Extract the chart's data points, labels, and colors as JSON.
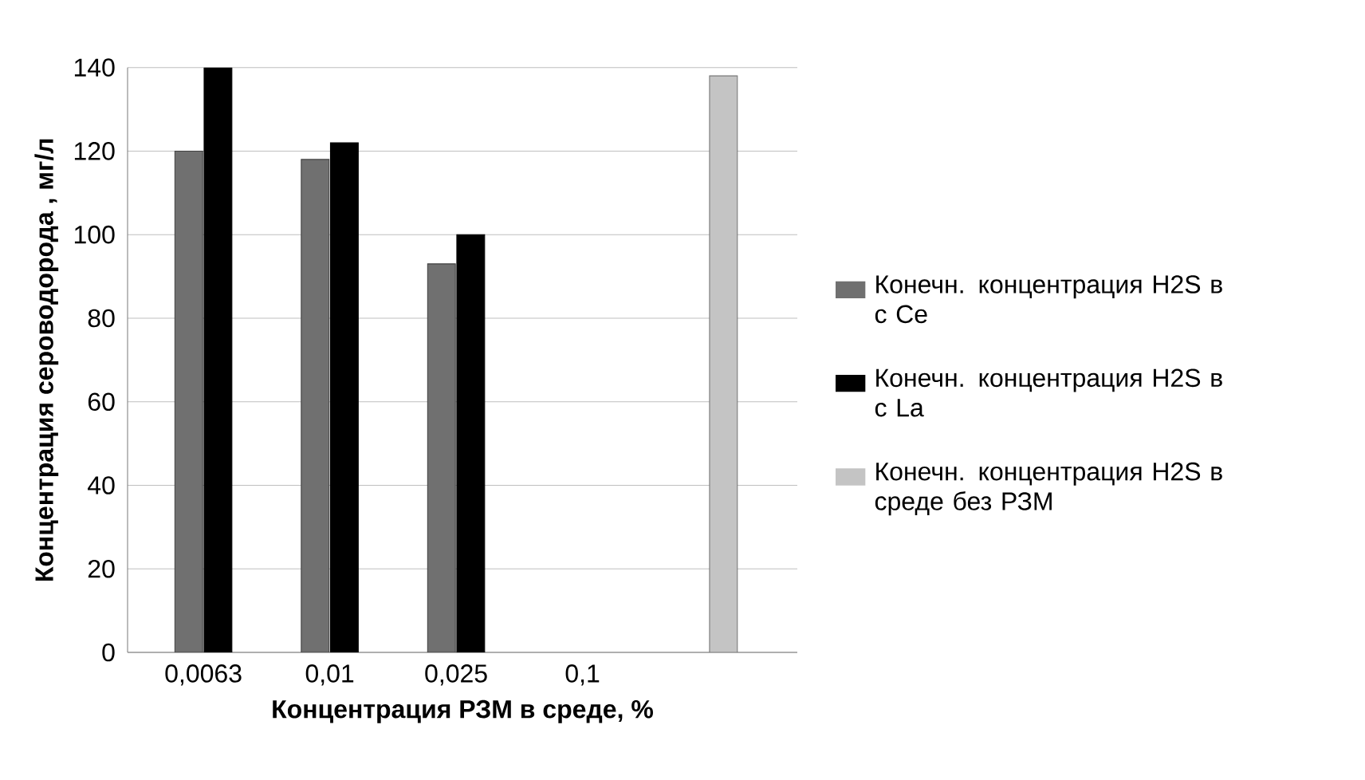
{
  "chart_data": {
    "type": "bar",
    "xlabel": "Концентрация РЗМ в среде, %",
    "ylabel": "Концентрация сероводорода , мг/л",
    "categories": [
      "0,0063",
      "0,01",
      "0,025",
      "0,1",
      null
    ],
    "series": [
      {
        "name": "Конечн. концентрация H2S в с Ce",
        "color": "#707070",
        "values": [
          120,
          118,
          93,
          null,
          null
        ]
      },
      {
        "name": "Конечн. концентрация H2S в с La",
        "color": "#000000",
        "values": [
          140,
          122,
          100,
          null,
          null
        ]
      },
      {
        "name": "Конечн. концентрация H2S в среде без РЗМ",
        "color": "#c4c4c4",
        "values": [
          null,
          null,
          null,
          null,
          138
        ]
      }
    ],
    "ylim": [
      0,
      140
    ],
    "yticks": [
      0,
      20,
      40,
      60,
      80,
      100,
      120,
      140
    ],
    "grid": "y",
    "legend": "right"
  }
}
